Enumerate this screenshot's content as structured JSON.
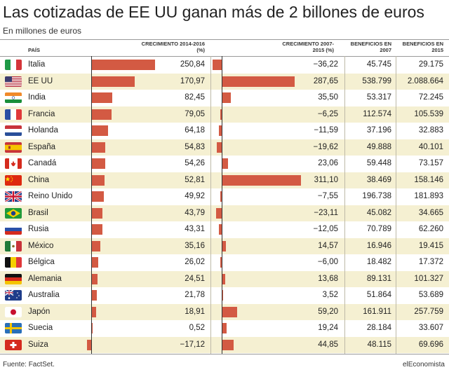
{
  "header": {
    "title": "Las cotizadas de EE UU ganan más de 2 billones de euros",
    "subtitle": "En millones de euros"
  },
  "columns": {
    "pais": "PAÍS",
    "crec_1416": "CRECIMIENTO 2014-2016 (%)",
    "crec_0715": "CRECIMIENTO 2007-2015 (%)",
    "ben_2007": "BENEFICIOS EN 2007",
    "ben_2015": "BENEFICIOS EN 2015"
  },
  "footer": {
    "source": "Fuente: FactSet.",
    "brand": "elEconomista"
  },
  "colors": {
    "bar": "#d35a43",
    "row_alt": "#f5f0d2",
    "axis": "#333333"
  },
  "chart_data": {
    "type": "table",
    "title": "Las cotizadas de EE UU ganan más de 2 billones de euros",
    "subtitle": "En millones de euros",
    "rows": [
      {
        "country": "Italia",
        "flag": "italy-flag",
        "growth_2014_2016": "250,84",
        "growth_2014_2016_value": 250.84,
        "growth_2007_2015": "−36,22",
        "growth_2007_2015_value": -36.22,
        "profit_2007": "45.745",
        "profit_2015": "29.175"
      },
      {
        "country": "EE UU",
        "flag": "usa-flag",
        "growth_2014_2016": "170,97",
        "growth_2014_2016_value": 170.97,
        "growth_2007_2015": "287,65",
        "growth_2007_2015_value": 287.65,
        "profit_2007": "538.799",
        "profit_2015": "2.088.664"
      },
      {
        "country": "India",
        "flag": "india-flag",
        "growth_2014_2016": "82,45",
        "growth_2014_2016_value": 82.45,
        "growth_2007_2015": "35,50",
        "growth_2007_2015_value": 35.5,
        "profit_2007": "53.317",
        "profit_2015": "72.245"
      },
      {
        "country": "Francia",
        "flag": "france-flag",
        "growth_2014_2016": "79,05",
        "growth_2014_2016_value": 79.05,
        "growth_2007_2015": "−6,25",
        "growth_2007_2015_value": -6.25,
        "profit_2007": "112.574",
        "profit_2015": "105.539"
      },
      {
        "country": "Holanda",
        "flag": "netherlands-flag",
        "growth_2014_2016": "64,18",
        "growth_2014_2016_value": 64.18,
        "growth_2007_2015": "−11,59",
        "growth_2007_2015_value": -11.59,
        "profit_2007": "37.196",
        "profit_2015": "32.883"
      },
      {
        "country": "España",
        "flag": "spain-flag",
        "growth_2014_2016": "54,83",
        "growth_2014_2016_value": 54.83,
        "growth_2007_2015": "−19,62",
        "growth_2007_2015_value": -19.62,
        "profit_2007": "49.888",
        "profit_2015": "40.101"
      },
      {
        "country": "Canadá",
        "flag": "canada-flag",
        "growth_2014_2016": "54,26",
        "growth_2014_2016_value": 54.26,
        "growth_2007_2015": "23,06",
        "growth_2007_2015_value": 23.06,
        "profit_2007": "59.448",
        "profit_2015": "73.157"
      },
      {
        "country": "China",
        "flag": "china-flag",
        "growth_2014_2016": "52,81",
        "growth_2014_2016_value": 52.81,
        "growth_2007_2015": "311,10",
        "growth_2007_2015_value": 311.1,
        "profit_2007": "38.469",
        "profit_2015": "158.146"
      },
      {
        "country": "Reino Unido",
        "flag": "uk-flag",
        "growth_2014_2016": "49,92",
        "growth_2014_2016_value": 49.92,
        "growth_2007_2015": "−7,55",
        "growth_2007_2015_value": -7.55,
        "profit_2007": "196.738",
        "profit_2015": "181.893"
      },
      {
        "country": "Brasil",
        "flag": "brazil-flag",
        "growth_2014_2016": "43,79",
        "growth_2014_2016_value": 43.79,
        "growth_2007_2015": "−23,11",
        "growth_2007_2015_value": -23.11,
        "profit_2007": "45.082",
        "profit_2015": "34.665"
      },
      {
        "country": "Rusia",
        "flag": "russia-flag",
        "growth_2014_2016": "43,31",
        "growth_2014_2016_value": 43.31,
        "growth_2007_2015": "−12,05",
        "growth_2007_2015_value": -12.05,
        "profit_2007": "70.789",
        "profit_2015": "62.260"
      },
      {
        "country": "México",
        "flag": "mexico-flag",
        "growth_2014_2016": "35,16",
        "growth_2014_2016_value": 35.16,
        "growth_2007_2015": "14,57",
        "growth_2007_2015_value": 14.57,
        "profit_2007": "16.946",
        "profit_2015": "19.415"
      },
      {
        "country": "Bélgica",
        "flag": "belgium-flag",
        "growth_2014_2016": "26,02",
        "growth_2014_2016_value": 26.02,
        "growth_2007_2015": "−6,00",
        "growth_2007_2015_value": -6.0,
        "profit_2007": "18.482",
        "profit_2015": "17.372"
      },
      {
        "country": "Alemania",
        "flag": "germany-flag",
        "growth_2014_2016": "24,51",
        "growth_2014_2016_value": 24.51,
        "growth_2007_2015": "13,68",
        "growth_2007_2015_value": 13.68,
        "profit_2007": "89.131",
        "profit_2015": "101.327"
      },
      {
        "country": "Australia",
        "flag": "australia-flag",
        "growth_2014_2016": "21,78",
        "growth_2014_2016_value": 21.78,
        "growth_2007_2015": "3,52",
        "growth_2007_2015_value": 3.52,
        "profit_2007": "51.864",
        "profit_2015": "53.689"
      },
      {
        "country": "Japón",
        "flag": "japan-flag",
        "growth_2014_2016": "18,91",
        "growth_2014_2016_value": 18.91,
        "growth_2007_2015": "59,20",
        "growth_2007_2015_value": 59.2,
        "profit_2007": "161.911",
        "profit_2015": "257.759"
      },
      {
        "country": "Suecia",
        "flag": "sweden-flag",
        "growth_2014_2016": "0,52",
        "growth_2014_2016_value": 0.52,
        "growth_2007_2015": "19,24",
        "growth_2007_2015_value": 19.24,
        "profit_2007": "28.184",
        "profit_2015": "33.607"
      },
      {
        "country": "Suiza",
        "flag": "switzerland-flag",
        "growth_2014_2016": "−17,12",
        "growth_2014_2016_value": -17.12,
        "growth_2007_2015": "44,85",
        "growth_2007_2015_value": 44.85,
        "profit_2007": "48.115",
        "profit_2015": "69.696"
      }
    ]
  }
}
